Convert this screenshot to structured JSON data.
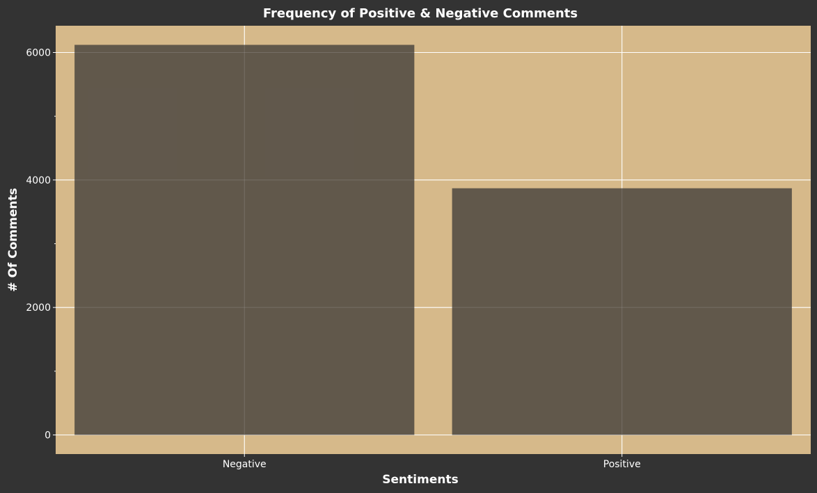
{
  "chart_data": {
    "type": "bar",
    "title": "Frequency of Positive & Negative Comments",
    "xlabel": "Sentiments",
    "ylabel": "# Of Comments",
    "categories": [
      "Negative",
      "Positive"
    ],
    "values": [
      6120,
      3870
    ],
    "ylim": [
      -300,
      6420
    ],
    "yticks": [
      0,
      2000,
      4000,
      6000
    ],
    "y_minor_ticks": [
      1000,
      3000,
      5000
    ],
    "grid": true,
    "legend": "none",
    "colors": {
      "background": "#333333",
      "panel": "#D6B98A",
      "bar": "#5C5449",
      "grid": "#FFFFFF",
      "text": "#FFFFFF"
    }
  }
}
